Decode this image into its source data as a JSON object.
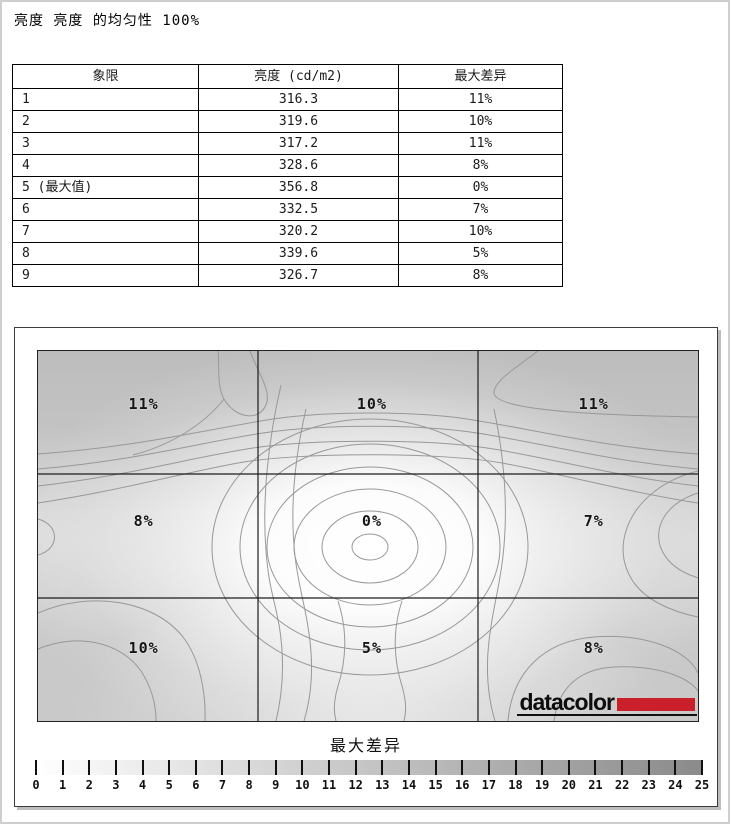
{
  "page": {
    "title": "亮度 亮度 的均匀性 100%"
  },
  "table": {
    "headers": [
      "象限",
      "亮度 (cd/m2)",
      "最大差异"
    ],
    "rows": [
      [
        "1",
        "316.3",
        "11%"
      ],
      [
        "2",
        "319.6",
        "10%"
      ],
      [
        "3",
        "317.2",
        "11%"
      ],
      [
        "4",
        "328.6",
        "8%"
      ],
      [
        "5 (最大值)",
        "356.8",
        "0%"
      ],
      [
        "6",
        "332.5",
        "7%"
      ],
      [
        "7",
        "320.2",
        "10%"
      ],
      [
        "8",
        "339.6",
        "5%"
      ],
      [
        "9",
        "326.7",
        "8%"
      ]
    ]
  },
  "chart_data": {
    "type": "heatmap",
    "title": "亮度 亮度 的均匀性 100%",
    "description": "3x3 luminance uniformity contour map, brightest at center (0%), darker toward top corners",
    "grid_rows": 3,
    "grid_cols": 3,
    "cell_labels": [
      [
        "11%",
        "10%",
        "11%"
      ],
      [
        "8%",
        "0%",
        "7%"
      ],
      [
        "10%",
        "5%",
        "8%"
      ]
    ],
    "quadrants": [
      "1",
      "2",
      "3",
      "4",
      "5 (最大值)",
      "6",
      "7",
      "8",
      "9"
    ],
    "luminance_cd_m2": [
      316.3,
      319.6,
      317.2,
      328.6,
      356.8,
      332.5,
      320.2,
      339.6,
      326.7
    ],
    "max_diff_percent": [
      11,
      10,
      11,
      8,
      0,
      7,
      10,
      5,
      8
    ],
    "colorbar": {
      "label": "最大差异",
      "min": 0,
      "max": 25,
      "ticks": [
        0,
        1,
        2,
        3,
        4,
        5,
        6,
        7,
        8,
        9,
        10,
        11,
        12,
        13,
        14,
        15,
        16,
        17,
        18,
        19,
        20,
        21,
        22,
        23,
        24,
        25
      ],
      "left_color": "#ffffff",
      "right_color": "#8a8a8a"
    },
    "legend_position": "bottom"
  },
  "logo": {
    "text": "datacolor",
    "accent_color": "#c9202b"
  },
  "colors": {
    "plot_base": "#c9c9c9",
    "contour_line": "#98989a",
    "grid_line": "#1c1c1c"
  }
}
